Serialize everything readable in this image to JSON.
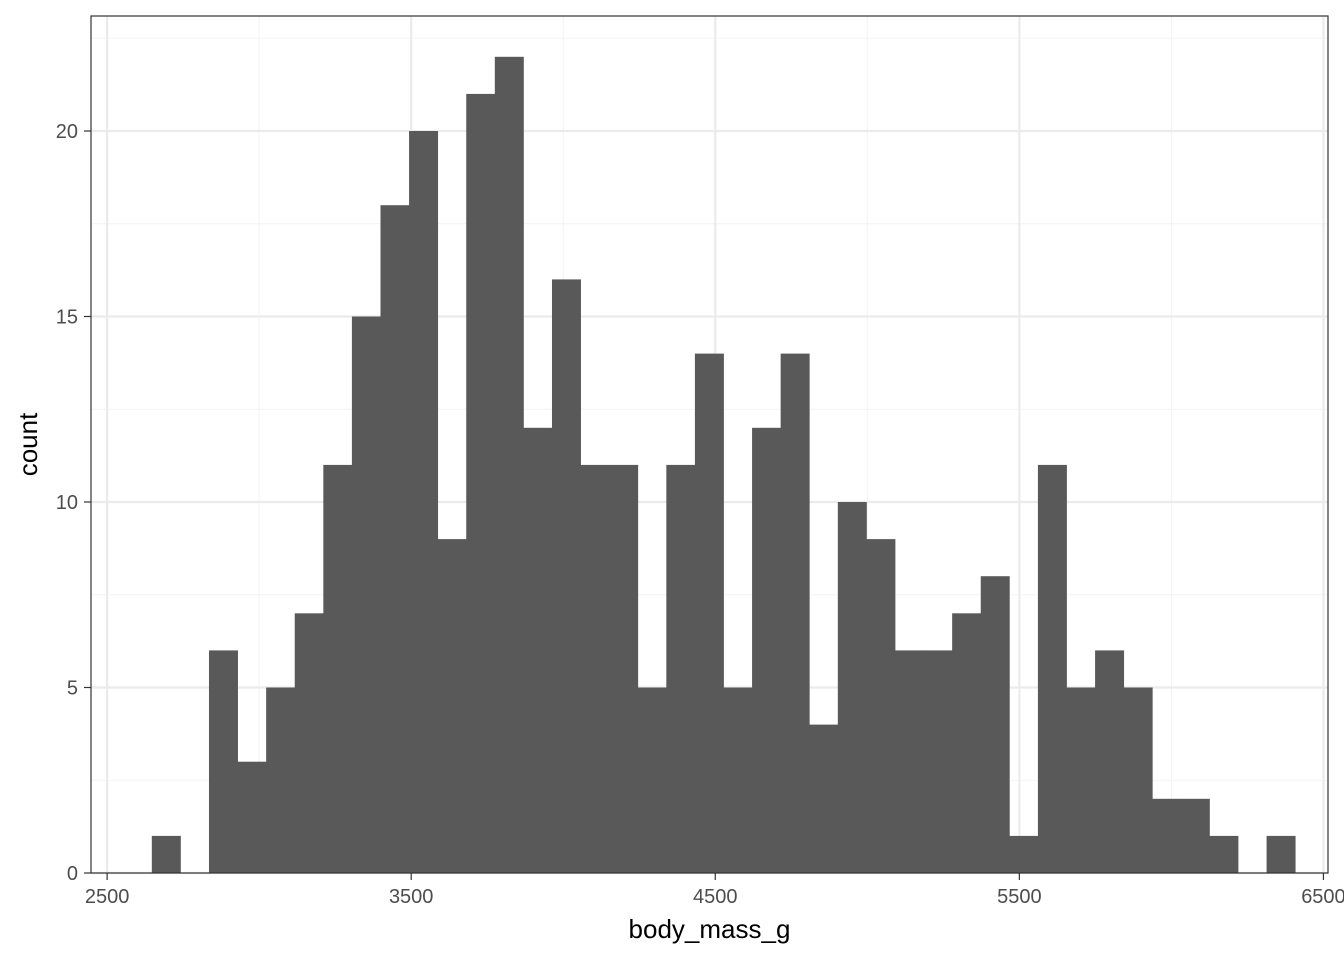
{
  "chart_data": {
    "type": "bar",
    "subtype": "histogram",
    "title": "",
    "xlabel": "body_mass_g",
    "ylabel": "count",
    "bin_width": 94,
    "bin_start": 2647,
    "counts": [
      1,
      0,
      6,
      3,
      5,
      7,
      11,
      15,
      18,
      20,
      9,
      21,
      22,
      12,
      16,
      11,
      11,
      5,
      11,
      14,
      5,
      12,
      14,
      4,
      10,
      9,
      6,
      6,
      7,
      8,
      1,
      11,
      5,
      6,
      5,
      2,
      2,
      1,
      0,
      1
    ],
    "xlim": [
      2447,
      6515
    ],
    "ylim": [
      0,
      23.1
    ],
    "x_ticks": [
      2500,
      3500,
      4500,
      5500,
      6500
    ],
    "x_tick_labels": [
      "2500",
      "3500",
      "4500",
      "5500",
      "6500"
    ],
    "y_ticks": [
      0,
      5,
      10,
      15,
      20
    ],
    "y_tick_labels": [
      "0",
      "5",
      "10",
      "15",
      "20"
    ],
    "grid": true,
    "theme": "bw",
    "colors": {
      "bar_fill": "#595959",
      "grid_major": "#ebebeb",
      "grid_minor": "#f4f4f4",
      "panel_border": "#333333",
      "tick_text": "#4d4d4d"
    }
  }
}
